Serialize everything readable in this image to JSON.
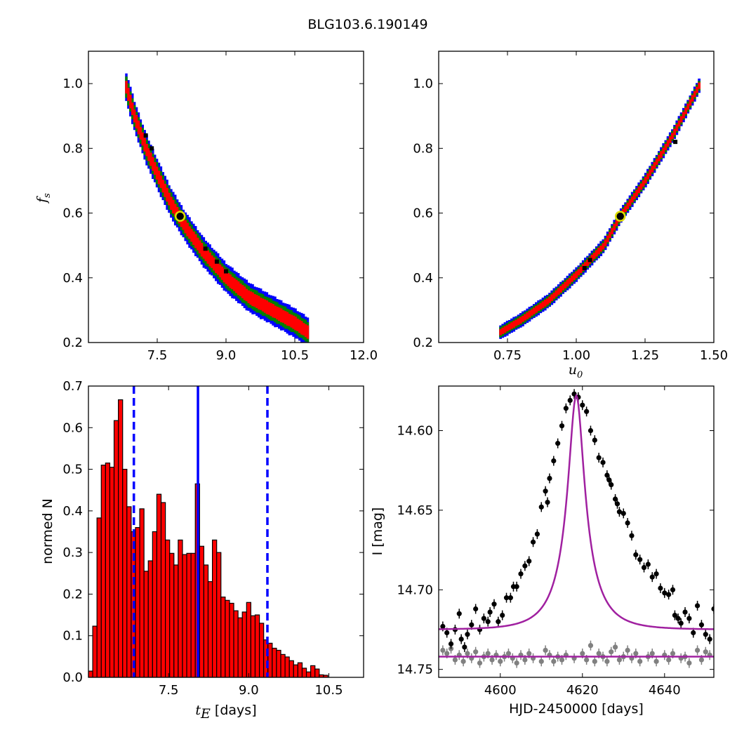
{
  "figure": {
    "title": "BLG103.6.190149"
  },
  "chart_data": [
    {
      "id": "fs_vs_te",
      "type": "heatmap",
      "xlabel": "",
      "ylabel": "f_s",
      "xlim": [
        6.0,
        12.0
      ],
      "ylim": [
        0.2,
        1.1
      ],
      "xticks": [
        "7.5",
        "9.0",
        "10.5",
        "12.0"
      ],
      "yticks": [
        "0.2",
        "0.4",
        "0.6",
        "0.8",
        "1.0"
      ],
      "levels": [
        {
          "name": "3-sigma",
          "color": "#0000ff"
        },
        {
          "name": "2-sigma",
          "color": "#008000"
        },
        {
          "name": "1-sigma",
          "color": "#ff0000"
        }
      ],
      "ridge": [
        [
          6.8,
          1.0
        ],
        [
          7.0,
          0.9
        ],
        [
          7.25,
          0.8
        ],
        [
          7.5,
          0.72
        ],
        [
          7.8,
          0.63
        ],
        [
          8.1,
          0.56
        ],
        [
          8.5,
          0.48
        ],
        [
          9.0,
          0.4
        ],
        [
          9.5,
          0.34
        ],
        [
          10.0,
          0.3
        ],
        [
          10.5,
          0.26
        ],
        [
          10.8,
          0.23
        ]
      ],
      "best_fit": {
        "x": 8.0,
        "y": 0.59
      },
      "samples": [
        [
          7.25,
          0.84
        ],
        [
          7.38,
          0.8
        ],
        [
          8.55,
          0.49
        ],
        [
          8.8,
          0.45
        ],
        [
          9.0,
          0.42
        ]
      ]
    },
    {
      "id": "fs_vs_u0",
      "type": "heatmap",
      "xlabel": "u_0",
      "ylabel": "",
      "xlim": [
        0.5,
        1.5
      ],
      "ylim": [
        0.2,
        1.1
      ],
      "xticks": [
        "0.75",
        "1.00",
        "1.25",
        "1.50"
      ],
      "yticks": [
        "0.2",
        "0.4",
        "0.6",
        "0.8",
        "1.0"
      ],
      "levels": [
        {
          "name": "3-sigma",
          "color": "#0000ff"
        },
        {
          "name": "2-sigma",
          "color": "#008000"
        },
        {
          "name": "1-sigma",
          "color": "#ff0000"
        }
      ],
      "ridge": [
        [
          0.72,
          0.23
        ],
        [
          0.8,
          0.27
        ],
        [
          0.9,
          0.33
        ],
        [
          1.0,
          0.41
        ],
        [
          1.1,
          0.5
        ],
        [
          1.16,
          0.59
        ],
        [
          1.25,
          0.7
        ],
        [
          1.35,
          0.84
        ],
        [
          1.45,
          1.0
        ]
      ],
      "best_fit": {
        "x": 1.16,
        "y": 0.59
      },
      "samples": [
        [
          1.03,
          0.43
        ],
        [
          1.05,
          0.455
        ],
        [
          1.36,
          0.82
        ]
      ]
    },
    {
      "id": "te_histogram",
      "type": "bar",
      "xlabel": "t_E [days]",
      "ylabel": "normed N",
      "xlim": [
        6.0,
        11.15
      ],
      "ylim": [
        0.0,
        0.7
      ],
      "xticks": [
        "7.5",
        "9.0",
        "10.5"
      ],
      "yticks": [
        "0.0",
        "0.1",
        "0.2",
        "0.3",
        "0.4",
        "0.5",
        "0.6",
        "0.7"
      ],
      "bin_start": 6.0,
      "bin_width": 0.08,
      "values": [
        0.015,
        0.123,
        0.383,
        0.51,
        0.515,
        0.505,
        0.617,
        0.667,
        0.5,
        0.41,
        0.35,
        0.36,
        0.405,
        0.255,
        0.28,
        0.35,
        0.44,
        0.42,
        0.33,
        0.298,
        0.27,
        0.33,
        0.295,
        0.298,
        0.298,
        0.465,
        0.315,
        0.27,
        0.23,
        0.33,
        0.3,
        0.193,
        0.185,
        0.178,
        0.16,
        0.143,
        0.157,
        0.18,
        0.148,
        0.15,
        0.13,
        0.09,
        0.082,
        0.07,
        0.065,
        0.055,
        0.049,
        0.04,
        0.03,
        0.035,
        0.022,
        0.013,
        0.028,
        0.02,
        0.006,
        0.005
      ],
      "bar_color": "#ff0000",
      "median": 8.05,
      "lower": 6.85,
      "upper": 9.35,
      "line_color": "#0000ff"
    },
    {
      "id": "light_curve",
      "type": "scatter",
      "xlabel": "HJD-2450000 [days]",
      "ylabel": "I [mag]",
      "xlim": [
        4585,
        4652
      ],
      "ylim": [
        14.755,
        14.572
      ],
      "xticks": [
        "4600",
        "4620",
        "4640"
      ],
      "yticks": [
        "14.60",
        "14.65",
        "14.70",
        "14.75"
      ],
      "model": {
        "t0": 4618.5,
        "u0": 1.16,
        "tE": 8.0,
        "fs": 0.59,
        "baseline": 14.725,
        "color": "#a020a0"
      },
      "residual_baseline": 14.742,
      "series": [
        {
          "name": "",
          "color": "#000000",
          "points": [
            [
              4586,
              14.723
            ],
            [
              4587,
              14.727
            ],
            [
              4588,
              14.734
            ],
            [
              4589,
              14.725
            ],
            [
              4590,
              14.715
            ],
            [
              4590.5,
              14.731
            ],
            [
              4591.3,
              14.736
            ],
            [
              4592,
              14.728
            ],
            [
              4593,
              14.722
            ],
            [
              4594,
              14.712
            ],
            [
              4595,
              14.725
            ],
            [
              4596,
              14.718
            ],
            [
              4597,
              14.72
            ],
            [
              4597.5,
              14.714
            ],
            [
              4598.5,
              14.709
            ],
            [
              4599.5,
              14.72
            ],
            [
              4600.5,
              14.716
            ],
            [
              4601.5,
              14.705
            ],
            [
              4602.5,
              14.705
            ],
            [
              4603.2,
              14.698
            ],
            [
              4604,
              14.698
            ],
            [
              4605,
              14.69
            ],
            [
              4606,
              14.685
            ],
            [
              4607,
              14.682
            ],
            [
              4608,
              14.67
            ],
            [
              4609,
              14.665
            ],
            [
              4610,
              14.648
            ],
            [
              4611,
              14.638
            ],
            [
              4611.5,
              14.645
            ],
            [
              4612,
              14.63
            ],
            [
              4613,
              14.619
            ],
            [
              4614,
              14.608
            ],
            [
              4615,
              14.597
            ],
            [
              4616,
              14.586
            ],
            [
              4617,
              14.581
            ],
            [
              4618,
              14.577
            ],
            [
              4619,
              14.579
            ],
            [
              4620,
              14.584
            ],
            [
              4621,
              14.588
            ],
            [
              4622,
              14.6
            ],
            [
              4623,
              14.606
            ],
            [
              4624,
              14.617
            ],
            [
              4625,
              14.62
            ],
            [
              4626,
              14.628
            ],
            [
              4626.5,
              14.631
            ],
            [
              4627,
              14.634
            ],
            [
              4628,
              14.643
            ],
            [
              4628.5,
              14.646
            ],
            [
              4629,
              14.651
            ],
            [
              4630,
              14.652
            ],
            [
              4631,
              14.658
            ],
            [
              4632,
              14.666
            ],
            [
              4633,
              14.678
            ],
            [
              4634,
              14.681
            ],
            [
              4635,
              14.686
            ],
            [
              4636,
              14.684
            ],
            [
              4637,
              14.692
            ],
            [
              4638,
              14.69
            ],
            [
              4639,
              14.699
            ],
            [
              4640,
              14.702
            ],
            [
              4641,
              14.703
            ],
            [
              4642,
              14.7
            ],
            [
              4642.5,
              14.716
            ],
            [
              4643.3,
              14.718
            ],
            [
              4644,
              14.721
            ],
            [
              4645,
              14.714
            ],
            [
              4646,
              14.718
            ],
            [
              4647,
              14.727
            ],
            [
              4648,
              14.71
            ],
            [
              4649,
              14.722
            ],
            [
              4650,
              14.728
            ],
            [
              4651,
              14.731
            ],
            [
              4652,
              14.712
            ]
          ]
        },
        {
          "name": "",
          "color": "#808080",
          "points": [
            [
              4586,
              14.738
            ],
            [
              4587,
              14.74
            ],
            [
              4588,
              14.737
            ],
            [
              4589,
              14.744
            ],
            [
              4590,
              14.741
            ],
            [
              4591,
              14.745
            ],
            [
              4592,
              14.74
            ],
            [
              4593,
              14.743
            ],
            [
              4594,
              14.739
            ],
            [
              4595,
              14.746
            ],
            [
              4596,
              14.742
            ],
            [
              4597,
              14.74
            ],
            [
              4598,
              14.744
            ],
            [
              4599,
              14.741
            ],
            [
              4600,
              14.745
            ],
            [
              4601,
              14.742
            ],
            [
              4602,
              14.74
            ],
            [
              4603,
              14.743
            ],
            [
              4604,
              14.746
            ],
            [
              4605,
              14.741
            ],
            [
              4606,
              14.744
            ],
            [
              4607,
              14.74
            ],
            [
              4608,
              14.743
            ],
            [
              4610,
              14.745
            ],
            [
              4611,
              14.738
            ],
            [
              4612,
              14.741
            ],
            [
              4613,
              14.745
            ],
            [
              4614,
              14.742
            ],
            [
              4615,
              14.744
            ],
            [
              4616,
              14.741
            ],
            [
              4618,
              14.743
            ],
            [
              4620,
              14.74
            ],
            [
              4621,
              14.744
            ],
            [
              4622,
              14.735
            ],
            [
              4623,
              14.745
            ],
            [
              4624,
              14.74
            ],
            [
              4625,
              14.742
            ],
            [
              4626,
              14.745
            ],
            [
              4627,
              14.739
            ],
            [
              4628,
              14.736
            ],
            [
              4629,
              14.744
            ],
            [
              4630,
              14.742
            ],
            [
              4631,
              14.738
            ],
            [
              4632,
              14.743
            ],
            [
              4633,
              14.74
            ],
            [
              4634,
              14.745
            ],
            [
              4636,
              14.742
            ],
            [
              4637,
              14.74
            ],
            [
              4638,
              14.745
            ],
            [
              4640,
              14.741
            ],
            [
              4641,
              14.744
            ],
            [
              4642,
              14.74
            ],
            [
              4644,
              14.743
            ],
            [
              4645,
              14.742
            ],
            [
              4646,
              14.746
            ],
            [
              4648,
              14.738
            ],
            [
              4649,
              14.744
            ],
            [
              4650,
              14.739
            ],
            [
              4651,
              14.741
            ]
          ]
        }
      ]
    }
  ]
}
